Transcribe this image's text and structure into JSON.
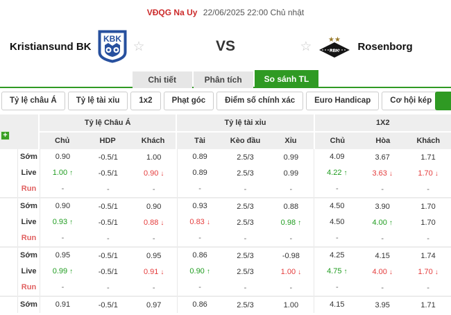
{
  "colors": {
    "accent": "#2f9a23",
    "league_red": "#cc2a2a",
    "up_green": "#1f9c1f",
    "down_red": "#e43b3b",
    "run_red": "#e06060",
    "kbk_blue": "#27509e",
    "rbk_gold": "#9a7b2d"
  },
  "header": {
    "league": "VĐQG Na Uy",
    "datetime": "22/06/2025 22:00 Chủ nhật",
    "vs": "VS",
    "home": {
      "name": "Kristiansund BK",
      "logo_text": "KBK"
    },
    "away": {
      "name": "Rosenborg",
      "logo_text": "RBK"
    }
  },
  "tabs": [
    {
      "label": "Chi tiết",
      "active": false
    },
    {
      "label": "Phân tích",
      "active": false
    },
    {
      "label": "So sánh TL",
      "active": true
    }
  ],
  "filters": [
    "Tỷ lệ châu Á",
    "Tỷ lệ tài xỉu",
    "1x2",
    "Phạt góc",
    "Điểm số chính xác",
    "Euro Handicap",
    "Cơ hội kép"
  ],
  "table": {
    "group_headers": [
      "Tỷ lệ Châu Á",
      "Tỷ lệ tài xỉu",
      "1X2"
    ],
    "sub_headers": [
      "Chủ",
      "HDP",
      "Khách",
      "Tài",
      "Kèo đầu",
      "Xỉu",
      "Chủ",
      "Hòa",
      "Khách"
    ],
    "groups": [
      {
        "rows": [
          {
            "label": "Sớm",
            "cells": [
              "0.90",
              "-0.5/1",
              "1.00",
              "0.89",
              "2.5/3",
              "0.99",
              "4.09",
              "3.67",
              "1.71"
            ]
          },
          {
            "label": "Live",
            "cells": [
              [
                "1.00",
                "up"
              ],
              "-0.5/1",
              [
                "0.90",
                "down"
              ],
              "0.89",
              "2.5/3",
              "0.99",
              [
                "4.22",
                "up"
              ],
              [
                "3.63",
                "down"
              ],
              [
                "1.70",
                "down"
              ]
            ]
          },
          {
            "label": "Run",
            "cells": [
              "-",
              "-",
              "-",
              "-",
              "-",
              "-",
              "-",
              "-",
              "-"
            ]
          }
        ]
      },
      {
        "rows": [
          {
            "label": "Sớm",
            "cells": [
              "0.90",
              "-0.5/1",
              "0.90",
              "0.93",
              "2.5/3",
              "0.88",
              "4.50",
              "3.90",
              "1.70"
            ]
          },
          {
            "label": "Live",
            "cells": [
              [
                "0.93",
                "up"
              ],
              "-0.5/1",
              [
                "0.88",
                "down"
              ],
              [
                "0.83",
                "down"
              ],
              "2.5/3",
              [
                "0.98",
                "up"
              ],
              "4.50",
              [
                "4.00",
                "up"
              ],
              "1.70"
            ]
          },
          {
            "label": "Run",
            "cells": [
              "-",
              "-",
              "-",
              "-",
              "-",
              "-",
              "-",
              "-",
              "-"
            ]
          }
        ]
      },
      {
        "rows": [
          {
            "label": "Sớm",
            "cells": [
              "0.95",
              "-0.5/1",
              "0.95",
              "0.86",
              "2.5/3",
              "-0.98",
              "4.25",
              "4.15",
              "1.74"
            ]
          },
          {
            "label": "Live",
            "cells": [
              [
                "0.99",
                "up"
              ],
              "-0.5/1",
              [
                "0.91",
                "down"
              ],
              [
                "0.90",
                "up"
              ],
              "2.5/3",
              [
                "1.00",
                "down"
              ],
              [
                "4.75",
                "up"
              ],
              [
                "4.00",
                "down"
              ],
              [
                "1.70",
                "down"
              ]
            ]
          },
          {
            "label": "Run",
            "cells": [
              "-",
              "-",
              "-",
              "-",
              "-",
              "-",
              "-",
              "-",
              "-"
            ]
          }
        ]
      },
      {
        "rows": [
          {
            "label": "Sớm",
            "cells": [
              "0.91",
              "-0.5/1",
              "0.97",
              "0.86",
              "2.5/3",
              "1.00",
              "4.15",
              "3.95",
              "1.71"
            ]
          }
        ]
      }
    ]
  }
}
